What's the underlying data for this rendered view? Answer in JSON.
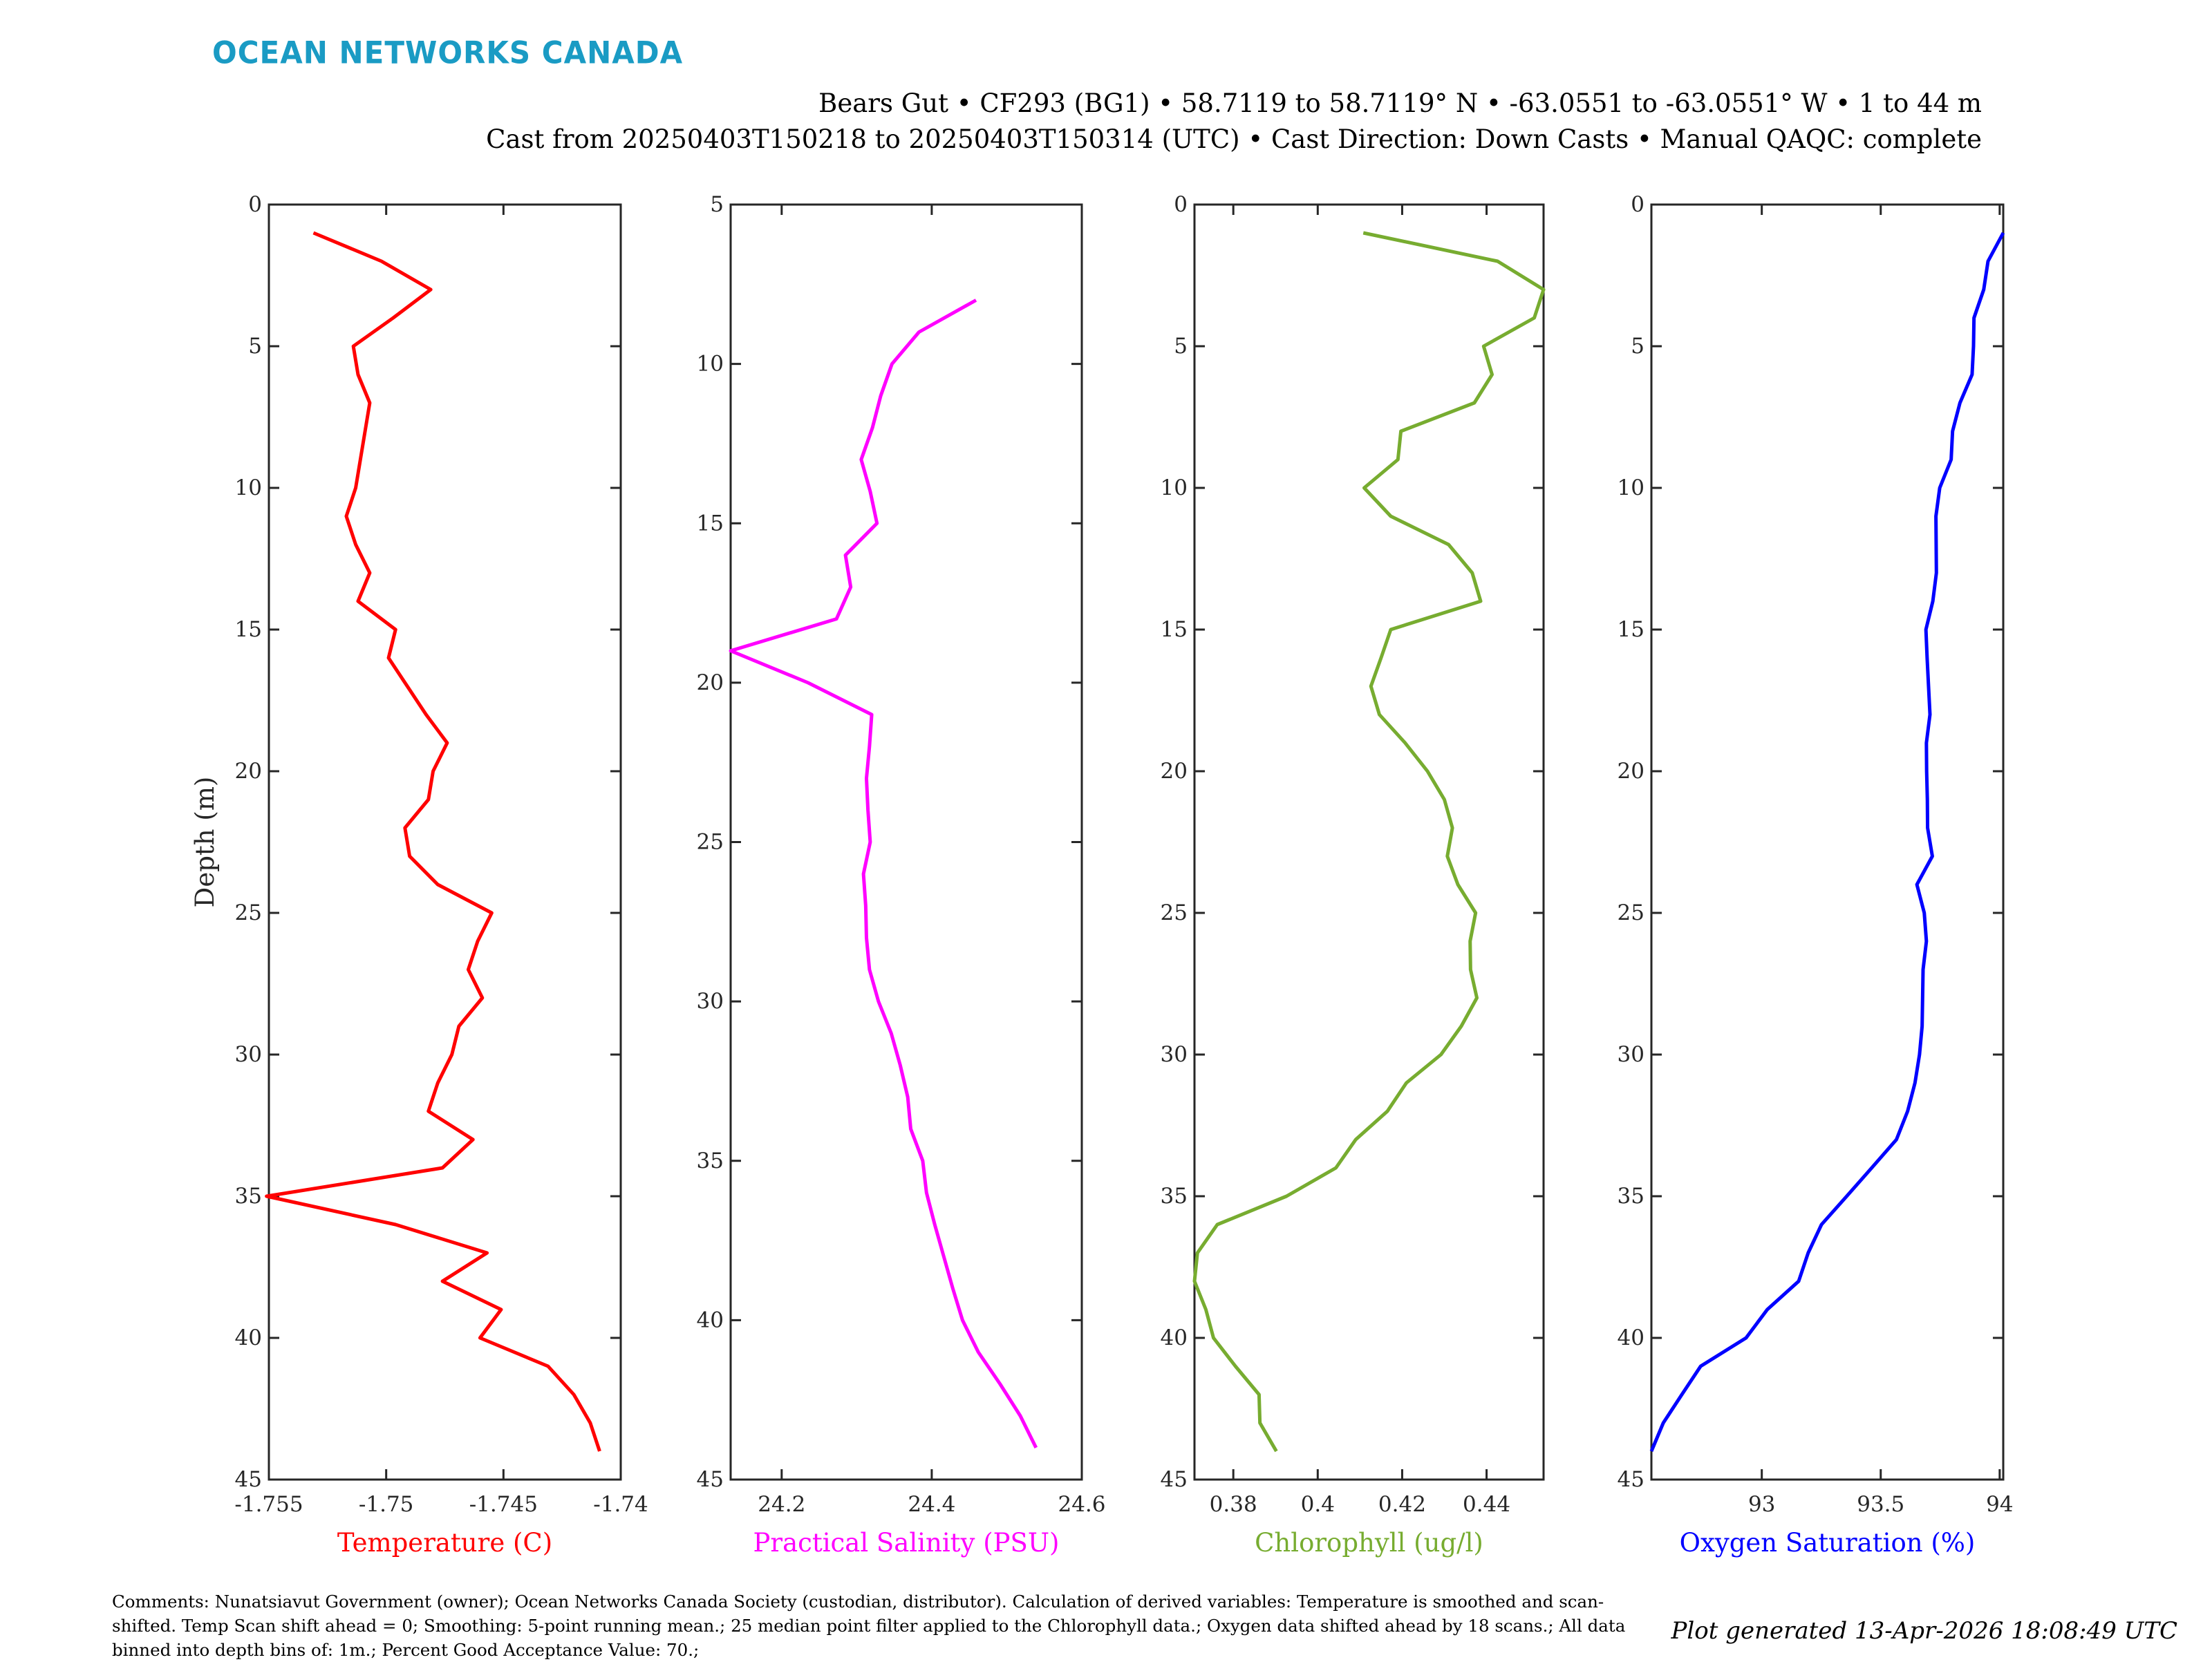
{
  "logo": {
    "text": "OCEAN NETWORKS CANADA",
    "color": "#1a9bc4"
  },
  "header": {
    "line1": "Bears Gut • CF293 (BG1) • 58.7119 to 58.7119° N • -63.0551 to -63.0551° W • 1 to 44 m",
    "line2": "Cast from 20250403T150218 to 20250403T150314 (UTC) • Cast Direction: Down Casts • Manual QAQC: complete"
  },
  "footer": {
    "comments": "Comments: Nunatsiavut Government (owner); Ocean Networks Canada Society (custodian, distributor). Calculation of derived variables: Temperature is smoothed and scan-shifted. Temp Scan shift ahead = 0; Smoothing: 5-point running mean.; 25 median point filter applied to the Chlorophyll data.; Oxygen data shifted ahead by 18 scans.; All data binned into depth bins of: 1m.; Percent Good Acceptance Value: 70.;",
    "generated": "Plot generated 13-Apr-2026 18:08:49 UTC"
  },
  "chart_data": [
    {
      "type": "line",
      "title": "",
      "xlabel": "Temperature (C)",
      "ylabel": "Depth (m)",
      "color": "#ff0000",
      "xlim": [
        -1.755,
        -1.74
      ],
      "ylim": [
        0,
        45
      ],
      "y_reversed": true,
      "xticks": [
        -1.755,
        -1.75,
        -1.745,
        -1.74
      ],
      "xtick_labels": [
        "-1.755",
        "-1.75",
        "-1.745",
        "-1.74"
      ],
      "yticks": [
        0,
        5,
        10,
        15,
        20,
        25,
        30,
        35,
        40,
        45
      ],
      "ytick_labels": [
        "0",
        "5",
        "10",
        "15",
        "20",
        "25",
        "30",
        "35",
        "40",
        "45"
      ],
      "grid": false,
      "series": [
        {
          "name": "Temperature",
          "depth": [
            1,
            2,
            3,
            4,
            5,
            6,
            7,
            8,
            9,
            10,
            11,
            12,
            13,
            14,
            15,
            16,
            17,
            18,
            19,
            20,
            21,
            22,
            23,
            24,
            25,
            26,
            27,
            28,
            29,
            30,
            31,
            32,
            33,
            34,
            35,
            36,
            37,
            38,
            39,
            40,
            41,
            42,
            43,
            44
          ],
          "values": [
            -1.7531,
            -1.7502,
            -1.7481,
            -1.7497,
            -1.7514,
            -1.7512,
            -1.7507,
            -1.7509,
            -1.7511,
            -1.7513,
            -1.7517,
            -1.7513,
            -1.7507,
            -1.7512,
            -1.7496,
            -1.7499,
            -1.7491,
            -1.7483,
            -1.7474,
            -1.748,
            -1.7482,
            -1.7492,
            -1.749,
            -1.7478,
            -1.7455,
            -1.7461,
            -1.7465,
            -1.7459,
            -1.7469,
            -1.7472,
            -1.7478,
            -1.7482,
            -1.7463,
            -1.7476,
            -1.7551,
            -1.7496,
            -1.7457,
            -1.7476,
            -1.7451,
            -1.746,
            -1.7431,
            -1.742,
            -1.7413,
            -1.7409
          ]
        }
      ]
    },
    {
      "type": "line",
      "title": "",
      "xlabel": "Practical Salinity (PSU)",
      "ylabel": "",
      "color": "#ff00ff",
      "xlim": [
        24.132,
        24.6
      ],
      "ylim": [
        5,
        45
      ],
      "y_reversed": true,
      "xticks": [
        24.2,
        24.4,
        24.6
      ],
      "xtick_labels": [
        "24.2",
        "24.4",
        "24.6"
      ],
      "yticks": [
        5,
        10,
        15,
        20,
        25,
        30,
        35,
        40,
        45
      ],
      "ytick_labels": [
        "5",
        "10",
        "15",
        "20",
        "25",
        "30",
        "35",
        "40",
        "45"
      ],
      "grid": false,
      "series": [
        {
          "name": "Practical Salinity",
          "depth": [
            8,
            9,
            10,
            11,
            12,
            13,
            14,
            15,
            16,
            17,
            18,
            19,
            20,
            21,
            22,
            23,
            24,
            25,
            26,
            27,
            28,
            29,
            30,
            31,
            32,
            33,
            34,
            35,
            36,
            37,
            38,
            39,
            40,
            41,
            42,
            43,
            44
          ],
          "values": [
            24.459,
            24.383,
            24.347,
            24.332,
            24.321,
            24.306,
            24.318,
            24.327,
            24.285,
            24.292,
            24.273,
            24.132,
            24.235,
            24.32,
            24.317,
            24.313,
            24.315,
            24.318,
            24.309,
            24.312,
            24.313,
            24.317,
            24.329,
            24.346,
            24.358,
            24.368,
            24.372,
            24.388,
            24.393,
            24.404,
            24.416,
            24.428,
            24.441,
            24.462,
            24.491,
            24.518,
            24.539
          ]
        }
      ]
    },
    {
      "type": "line",
      "title": "",
      "xlabel": "Chlorophyll (ug/l)",
      "ylabel": "",
      "color": "#77ac30",
      "xlim": [
        0.3708,
        0.4535
      ],
      "ylim": [
        0,
        45
      ],
      "y_reversed": true,
      "xticks": [
        0.38,
        0.4,
        0.42,
        0.44
      ],
      "xtick_labels": [
        "0.38",
        "0.4",
        "0.42",
        "0.44"
      ],
      "yticks": [
        0,
        5,
        10,
        15,
        20,
        25,
        30,
        35,
        40,
        45
      ],
      "ytick_labels": [
        "0",
        "5",
        "10",
        "15",
        "20",
        "25",
        "30",
        "35",
        "40",
        "45"
      ],
      "grid": false,
      "series": [
        {
          "name": "Chlorophyll",
          "depth": [
            1,
            2,
            3,
            4,
            5,
            6,
            7,
            8,
            9,
            10,
            11,
            12,
            13,
            14,
            15,
            16,
            17,
            18,
            19,
            20,
            21,
            22,
            23,
            24,
            25,
            26,
            27,
            28,
            29,
            30,
            31,
            32,
            33,
            34,
            35,
            36,
            37,
            38,
            39,
            40,
            41,
            42,
            43,
            44
          ],
          "values": [
            0.4108,
            0.4426,
            0.4535,
            0.4513,
            0.4393,
            0.4413,
            0.4371,
            0.4197,
            0.419,
            0.411,
            0.4173,
            0.431,
            0.4366,
            0.4386,
            0.4173,
            0.415,
            0.4126,
            0.4146,
            0.4207,
            0.426,
            0.43,
            0.4319,
            0.4307,
            0.4332,
            0.4374,
            0.4361,
            0.4362,
            0.4377,
            0.434,
            0.4292,
            0.421,
            0.4165,
            0.409,
            0.4043,
            0.3926,
            0.3762,
            0.3715,
            0.3708,
            0.3735,
            0.3753,
            0.3805,
            0.3861,
            0.3863,
            0.3902
          ]
        }
      ]
    },
    {
      "type": "line",
      "title": "",
      "xlabel": "Oxygen Saturation (%)",
      "ylabel": "",
      "color": "#0000ff",
      "xlim": [
        92.536,
        94.015
      ],
      "ylim": [
        0,
        45
      ],
      "y_reversed": true,
      "xticks": [
        93,
        93.5,
        94
      ],
      "xtick_labels": [
        "93",
        "93.5",
        "94"
      ],
      "yticks": [
        0,
        5,
        10,
        15,
        20,
        25,
        30,
        35,
        40,
        45
      ],
      "ytick_labels": [
        "0",
        "5",
        "10",
        "15",
        "20",
        "25",
        "30",
        "35",
        "40",
        "45"
      ],
      "grid": false,
      "series": [
        {
          "name": "Oxygen Saturation",
          "depth": [
            1,
            2,
            3,
            4,
            5,
            6,
            7,
            8,
            9,
            10,
            11,
            12,
            13,
            14,
            15,
            16,
            17,
            18,
            19,
            20,
            21,
            22,
            23,
            24,
            25,
            26,
            27,
            28,
            29,
            30,
            31,
            32,
            33,
            34,
            35,
            36,
            37,
            38,
            39,
            40,
            41,
            42,
            43,
            44
          ],
          "values": [
            94.015,
            93.951,
            93.933,
            93.892,
            93.89,
            93.884,
            93.833,
            93.802,
            93.796,
            93.748,
            93.732,
            93.733,
            93.734,
            93.719,
            93.69,
            93.695,
            93.701,
            93.707,
            93.692,
            93.693,
            93.696,
            93.697,
            93.717,
            93.652,
            93.683,
            93.692,
            93.678,
            93.676,
            93.674,
            93.663,
            93.644,
            93.613,
            93.566,
            93.462,
            93.357,
            93.251,
            93.195,
            93.155,
            93.023,
            92.934,
            92.743,
            92.664,
            92.586,
            92.536
          ]
        }
      ]
    }
  ]
}
